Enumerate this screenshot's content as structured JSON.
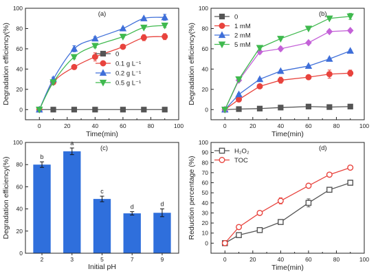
{
  "chart_data": [
    {
      "panel_label": "(a)",
      "type": "line",
      "xlabel": "Time(min)",
      "ylabel": "Degradation efficiency(%)",
      "xlim": [
        -10,
        100
      ],
      "ylim": [
        -10,
        100
      ],
      "xticks": [
        "0",
        "20",
        "40",
        "60",
        "80",
        "100"
      ],
      "yticks": [
        "0",
        "20",
        "40",
        "60",
        "80",
        "100"
      ],
      "legend_position": "center-right",
      "legend_ticks_minor": true,
      "series": [
        {
          "name": "0",
          "marker": "square",
          "color": "#555555",
          "smooth": false,
          "x": [
            0,
            10,
            25,
            40,
            60,
            75,
            90
          ],
          "y": [
            0,
            0,
            0,
            0,
            0,
            0,
            0
          ],
          "err": [
            0,
            0,
            0,
            0,
            0,
            0,
            0
          ]
        },
        {
          "name": "0.1 g L⁻¹",
          "marker": "circle",
          "color": "#e8433d",
          "smooth": true,
          "x": [
            0,
            10,
            25,
            40,
            60,
            75,
            90
          ],
          "y": [
            0,
            27,
            42,
            52,
            62,
            71,
            72
          ],
          "err": [
            0,
            1,
            2,
            4,
            1,
            3,
            3
          ]
        },
        {
          "name": "0.2 g L⁻¹",
          "marker": "triangle-up",
          "color": "#3f6fd9",
          "smooth": true,
          "x": [
            0,
            10,
            25,
            40,
            60,
            75,
            90
          ],
          "y": [
            0,
            30,
            60,
            70,
            80,
            90,
            91
          ],
          "err": [
            0,
            2,
            3,
            2,
            1,
            1,
            3
          ]
        },
        {
          "name": "0.5 g L⁻¹",
          "marker": "triangle-down",
          "color": "#3fb94e",
          "smooth": true,
          "x": [
            0,
            10,
            25,
            40,
            60,
            75,
            90
          ],
          "y": [
            0,
            27,
            52,
            63,
            72,
            81,
            83
          ],
          "err": [
            0,
            1,
            2,
            2,
            1,
            1,
            2
          ]
        }
      ]
    },
    {
      "panel_label": "(b)",
      "type": "line",
      "xlabel": "Time(min)",
      "ylabel": "Degradation efficiency(%)",
      "xlim": [
        -10,
        100
      ],
      "ylim": [
        -10,
        100
      ],
      "xticks": [
        "0",
        "20",
        "40",
        "60",
        "80",
        "100"
      ],
      "yticks": [
        "0",
        "20",
        "40",
        "60",
        "80",
        "100"
      ],
      "legend_position": "top-left",
      "series": [
        {
          "name": "0",
          "marker": "square",
          "color": "#555555",
          "smooth": false,
          "x": [
            0,
            10,
            25,
            40,
            60,
            75,
            90
          ],
          "y": [
            0,
            0.5,
            1,
            2,
            3,
            2.5,
            3
          ],
          "err": [
            0,
            0,
            0,
            0,
            0,
            0,
            0
          ]
        },
        {
          "name": "1 mM",
          "marker": "circle",
          "color": "#e8433d",
          "smooth": false,
          "x": [
            0,
            10,
            25,
            40,
            60,
            75,
            90
          ],
          "y": [
            0,
            10,
            23,
            29,
            32,
            35,
            36
          ],
          "err": [
            0,
            1,
            2,
            3,
            2,
            4,
            3
          ]
        },
        {
          "name": "2 mM",
          "marker": "triangle-up",
          "color": "#3f6fd9",
          "smooth": false,
          "x": [
            0,
            10,
            25,
            40,
            60,
            75,
            90
          ],
          "y": [
            0,
            15,
            30,
            38,
            43,
            50,
            58
          ],
          "err": [
            0,
            1,
            1,
            1,
            1,
            1,
            1
          ]
        },
        {
          "name": "",
          "marker": "diamond",
          "color": "#c462d8",
          "smooth": false,
          "x": [
            0,
            10,
            25,
            40,
            60,
            75,
            90
          ],
          "y": [
            0,
            29,
            57,
            60,
            66,
            77,
            78
          ],
          "err": [
            0,
            1,
            2,
            2,
            1,
            1,
            1
          ]
        },
        {
          "name": "5 mM",
          "marker": "triangle-down",
          "color": "#3fb94e",
          "smooth": false,
          "x": [
            0,
            10,
            25,
            40,
            60,
            75,
            90
          ],
          "y": [
            0,
            30,
            61,
            70,
            80,
            90,
            92
          ],
          "err": [
            0,
            2,
            2,
            1,
            1,
            1,
            3
          ]
        }
      ]
    },
    {
      "panel_label": "(c)",
      "type": "bar",
      "xlabel": "Initial pH",
      "ylabel": "Degradation efficiency(%)",
      "ylim": [
        0,
        100
      ],
      "yticks": [
        "0",
        "20",
        "40",
        "60",
        "80",
        "100"
      ],
      "categories": [
        "2",
        "3",
        "5",
        "7",
        "9"
      ],
      "values": [
        80,
        92,
        49,
        36,
        36.5
      ],
      "errors": [
        2.5,
        3,
        2.5,
        1.5,
        3.5
      ],
      "letters": [
        "b",
        "a",
        "c",
        "d",
        "d"
      ],
      "color": "#2f6fdc"
    },
    {
      "panel_label": "(d)",
      "type": "line",
      "xlabel": "Time(min)",
      "ylabel": "Reduction percentage (%)",
      "xlim": [
        -10,
        100
      ],
      "ylim": [
        -10,
        100
      ],
      "xticks": [
        "0",
        "20",
        "40",
        "60",
        "80",
        "100"
      ],
      "yticks": [
        "0",
        "10",
        "20",
        "30",
        "40",
        "50",
        "60",
        "70",
        "80",
        "90",
        "100"
      ],
      "legend_position": "top-left",
      "series": [
        {
          "name": "H₂O₂",
          "marker": "open-square",
          "color": "#555555",
          "smooth": false,
          "x": [
            0,
            10,
            25,
            40,
            60,
            75,
            90
          ],
          "y": [
            0,
            8,
            13,
            21,
            40,
            53,
            60
          ],
          "err": [
            0,
            2.5,
            1,
            1,
            4,
            1.5,
            2.5
          ]
        },
        {
          "name": "TOC",
          "marker": "open-circle",
          "color": "#e8433d",
          "smooth": false,
          "x": [
            0,
            10,
            25,
            40,
            60,
            75,
            90
          ],
          "y": [
            0,
            16,
            30,
            42,
            57,
            68,
            75
          ],
          "err": [
            0,
            1,
            1,
            3,
            1,
            1,
            1
          ]
        }
      ]
    }
  ]
}
